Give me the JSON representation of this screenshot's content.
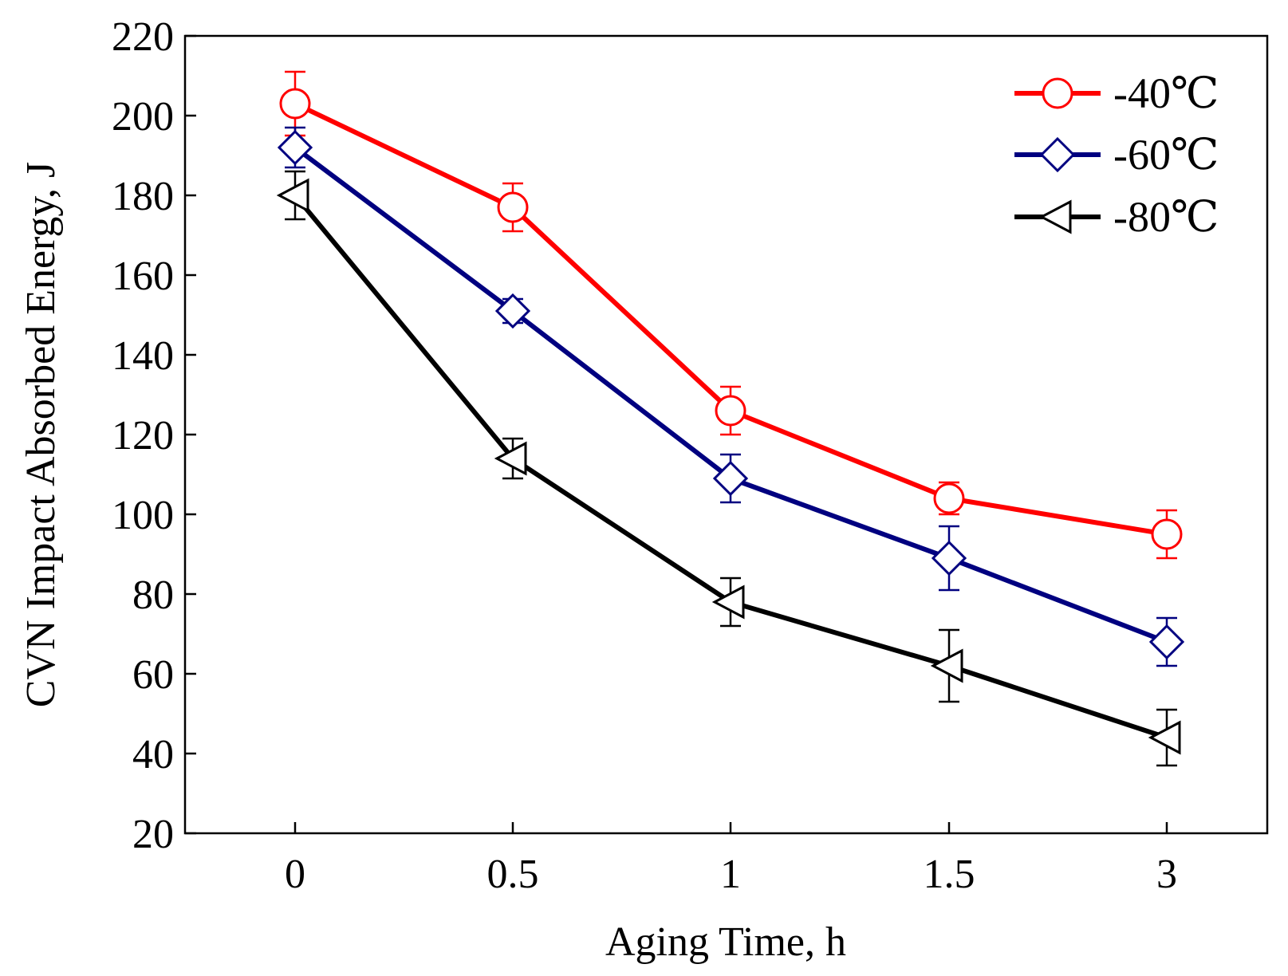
{
  "chart_data": {
    "type": "line",
    "title": "",
    "xlabel": "Aging Time, h",
    "ylabel": "CVN Impact Absorbed Energy, J",
    "categories": [
      "0",
      "0.5",
      "1",
      "1.5",
      "3"
    ],
    "ylim": [
      20,
      220
    ],
    "yticks": [
      "20",
      "40",
      "60",
      "80",
      "100",
      "120",
      "140",
      "160",
      "180",
      "200",
      "220"
    ],
    "grid": false,
    "legend_position": "top-right",
    "series": [
      {
        "name": "-40℃",
        "color": "#ff0000",
        "marker": "circle",
        "values": [
          203,
          177,
          126,
          104,
          95
        ],
        "errors": [
          8,
          6,
          6,
          4,
          6
        ]
      },
      {
        "name": "-60℃",
        "color": "#000080",
        "marker": "diamond",
        "values": [
          192,
          151,
          109,
          89,
          68
        ],
        "errors": [
          5,
          3,
          6,
          8,
          6
        ]
      },
      {
        "name": "-80℃",
        "color": "#000000",
        "marker": "triangle-left",
        "values": [
          180,
          114,
          78,
          62,
          44
        ],
        "errors": [
          6,
          5,
          6,
          9,
          7
        ]
      }
    ]
  }
}
